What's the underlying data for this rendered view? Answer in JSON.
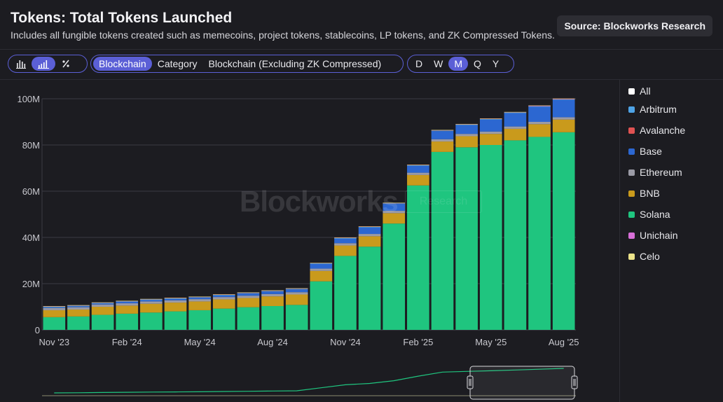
{
  "header": {
    "title": "Tokens: Total Tokens Launched",
    "subtitle": "Includes all fungible tokens created such as memecoins, project tokens, stablecoins, LP tokens, and ZK Compressed Tokens.",
    "source": "Source: Blockworks Research"
  },
  "controls": {
    "chart_types": [
      "bar-chart-icon",
      "stacked-bar-chart-icon",
      "percent-icon"
    ],
    "groupings": [
      "Blockchain",
      "Category",
      "Blockchain (Excluding ZK Compressed)"
    ],
    "active_grouping": "Blockchain",
    "intervals": [
      "D",
      "W",
      "M",
      "Q",
      "Y"
    ],
    "active_interval": "M"
  },
  "watermark": {
    "brand": "Blockworks",
    "tag": "Research"
  },
  "colors": {
    "Solana": "#1fc57f",
    "BNB": "#c99a1c",
    "Ethereum": "#9b9ba6",
    "Base": "#2c67d1",
    "Arbitrum": "#4ea3e6",
    "Avalanche": "#e05252",
    "Unichain": "#d86fd8",
    "Celo": "#ece38a",
    "All": "#ffffff"
  },
  "legend": [
    "All",
    "Arbitrum",
    "Avalanche",
    "Base",
    "Ethereum",
    "BNB",
    "Solana",
    "Unichain",
    "Celo"
  ],
  "chart_data": {
    "type": "bar",
    "stacked": true,
    "categories": [
      "Nov '23",
      "Dec '23",
      "Jan '24",
      "Feb '24",
      "Mar '24",
      "Apr '24",
      "May '24",
      "Jun '24",
      "Jul '24",
      "Aug '24",
      "Sep '24",
      "Oct '24",
      "Nov '24",
      "Dec '24",
      "Jan '25",
      "Feb '25",
      "Mar '25",
      "Apr '25",
      "May '25",
      "Jun '25",
      "Jul '25",
      "Aug '25"
    ],
    "x_tick_labels": [
      "Nov '23",
      "Feb '24",
      "May '24",
      "Aug '24",
      "Nov '24",
      "Feb '25",
      "May '25",
      "Aug '25"
    ],
    "y_tick_labels": [
      "0",
      "20M",
      "40M",
      "60M",
      "80M",
      "100M"
    ],
    "ylim": [
      0,
      100000000
    ],
    "grid": true,
    "legend_position": "right",
    "series": [
      {
        "name": "Solana",
        "values": [
          5.5,
          5.8,
          6.5,
          7.0,
          7.5,
          8.0,
          8.5,
          9.2,
          9.8,
          10.3,
          10.8,
          21.0,
          32.0,
          36.0,
          46.0,
          62.5,
          77.0,
          79.0,
          80.0,
          82.0,
          83.5,
          85.5
        ]
      },
      {
        "name": "BNB",
        "values": [
          3.0,
          3.0,
          3.5,
          3.5,
          3.8,
          3.8,
          3.8,
          4.0,
          4.0,
          4.2,
          4.5,
          4.5,
          4.5,
          4.5,
          4.5,
          4.5,
          4.5,
          4.8,
          4.8,
          5.0,
          5.5,
          5.5
        ]
      },
      {
        "name": "Ethereum",
        "values": [
          1.0,
          1.0,
          1.0,
          1.0,
          1.0,
          1.0,
          1.0,
          1.0,
          1.0,
          1.0,
          1.0,
          1.0,
          1.0,
          1.0,
          1.0,
          1.0,
          1.0,
          1.0,
          1.0,
          1.0,
          1.0,
          1.0
        ]
      },
      {
        "name": "Base",
        "values": [
          0.3,
          0.4,
          0.4,
          0.6,
          0.6,
          0.6,
          0.6,
          0.7,
          0.9,
          1.1,
          1.2,
          2.0,
          2.0,
          2.8,
          3.0,
          3.0,
          3.5,
          3.8,
          5.2,
          5.8,
          6.5,
          7.5
        ]
      },
      {
        "name": "Arbitrum",
        "values": [
          0.3,
          0.3,
          0.3,
          0.3,
          0.3,
          0.3,
          0.3,
          0.3,
          0.3,
          0.3,
          0.3,
          0.3,
          0.3,
          0.3,
          0.3,
          0.3,
          0.3,
          0.3,
          0.3,
          0.3,
          0.3,
          0.3
        ]
      },
      {
        "name": "Avalanche",
        "values": [
          0.1,
          0.1,
          0.1,
          0.1,
          0.1,
          0.1,
          0.1,
          0.1,
          0.1,
          0.1,
          0.1,
          0.1,
          0.1,
          0.1,
          0.1,
          0.1,
          0.1,
          0.1,
          0.1,
          0.1,
          0.1,
          0.1
        ]
      },
      {
        "name": "Unichain",
        "values": [
          0,
          0,
          0,
          0,
          0,
          0,
          0,
          0,
          0,
          0,
          0,
          0,
          0,
          0,
          0,
          0,
          0,
          0,
          0,
          0,
          0.1,
          0.1
        ]
      },
      {
        "name": "Celo",
        "values": [
          0.1,
          0.1,
          0.1,
          0.1,
          0.1,
          0.1,
          0.1,
          0.1,
          0.1,
          0.1,
          0.1,
          0.1,
          0.1,
          0.1,
          0.1,
          0.1,
          0.1,
          0.1,
          0.1,
          0.1,
          0.1,
          0.1
        ]
      }
    ],
    "units": "millions"
  }
}
